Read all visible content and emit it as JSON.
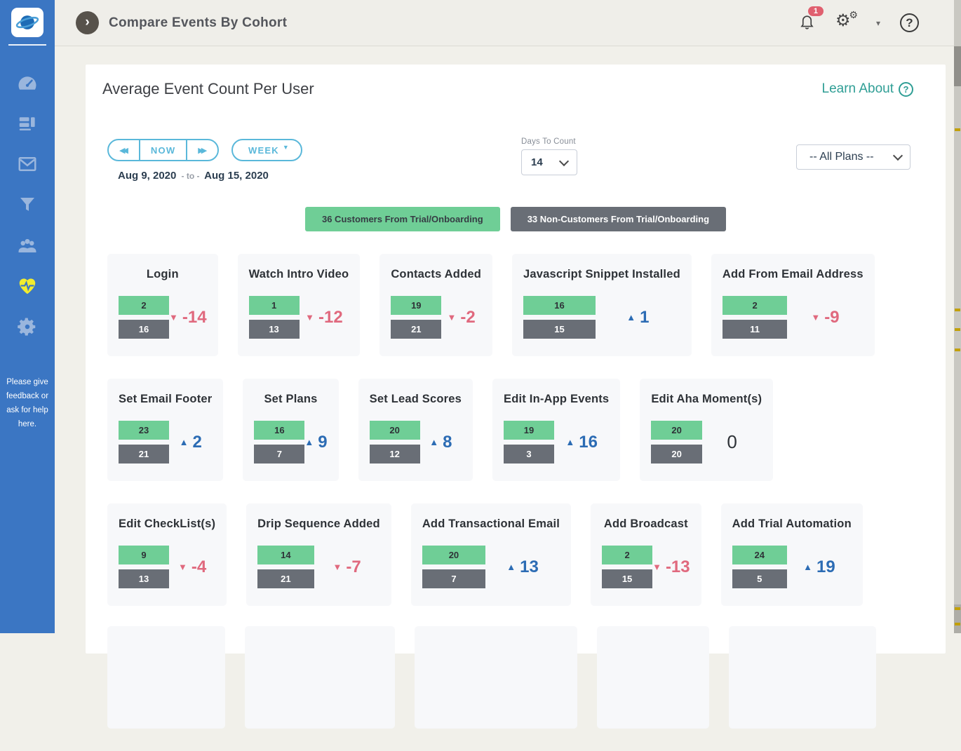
{
  "header": {
    "title": "Compare Events By Cohort",
    "collapse_chevron": "›",
    "notification_badge": "1",
    "gear_glyph": "⚙",
    "dropdown_caret": "▾",
    "help_glyph": "?"
  },
  "sidebar": {
    "items": [
      {
        "label": "dashboard"
      },
      {
        "label": "lists"
      },
      {
        "label": "email"
      },
      {
        "label": "filters"
      },
      {
        "label": "people"
      },
      {
        "label": "customer-health",
        "active": true
      },
      {
        "label": "settings"
      }
    ],
    "footer_note": "Please give feedback or ask for help here."
  },
  "panel": {
    "title": "Average Event Count Per User",
    "learn_label": "Learn About",
    "learn_q": "?",
    "time_nav": {
      "rewind_icon": "◀◀",
      "now_label": "NOW",
      "forward_icon": "▶▶",
      "period_label": "WEEK",
      "period_caret": "▼"
    },
    "date_range": {
      "start": "Aug 9, 2020",
      "separator": "- to -",
      "end": "Aug 15, 2020"
    },
    "days_to_count": {
      "label": "Days To Count",
      "value": "14"
    },
    "plan_filter": {
      "value": "-- All Plans --"
    },
    "cohorts": [
      {
        "label": "36 Customers From Trial/Onboarding",
        "color": "#6fce96"
      },
      {
        "label": "33 Non-Customers From Trial/Onboarding",
        "color": "#696e76"
      }
    ]
  },
  "icons": {
    "arrow_up": "▲",
    "arrow_down": "▼"
  },
  "colors": {
    "sidebar_blue": "#3b76c3",
    "active_yellow": "#f2ec2e",
    "header_bg": "#efeee9",
    "teal_link": "#2f9e95",
    "control_blue": "#5ab8da",
    "navy_text": "#2c3e50",
    "customers_green": "#6fce96",
    "non_customers_gray": "#696e76",
    "delta_down_red": "#e0697e",
    "delta_up_blue": "#2c6cb4",
    "badge_red": "#e0606f"
  },
  "chart_data": {
    "type": "bar",
    "title": "Average Event Count Per User",
    "period": {
      "start": "Aug 9, 2020",
      "end": "Aug 15, 2020",
      "granularity": "WEEK",
      "days_to_count": 14
    },
    "series": [
      {
        "name": "36 Customers From Trial/Onboarding",
        "color": "#6fce96"
      },
      {
        "name": "33 Non-Customers From Trial/Onboarding",
        "color": "#696e76"
      }
    ],
    "layout": {
      "rows": [
        5,
        5,
        5
      ],
      "partial_row_widths": [
        168,
        214,
        232,
        160,
        210
      ]
    },
    "cards": [
      {
        "title": "Login",
        "customers": 2,
        "non_customers": 16,
        "delta": -14
      },
      {
        "title": "Watch Intro Video",
        "customers": 1,
        "non_customers": 13,
        "delta": -12
      },
      {
        "title": "Contacts Added",
        "customers": 19,
        "non_customers": 21,
        "delta": -2
      },
      {
        "title": "Javascript Snippet Installed",
        "customers": 16,
        "non_customers": 15,
        "delta": 1
      },
      {
        "title": "Add From Email Address",
        "customers": 2,
        "non_customers": 11,
        "delta": -9
      },
      {
        "title": "Set Email Footer",
        "customers": 23,
        "non_customers": 21,
        "delta": 2
      },
      {
        "title": "Set Plans",
        "customers": 16,
        "non_customers": 7,
        "delta": 9
      },
      {
        "title": "Set Lead Scores",
        "customers": 20,
        "non_customers": 12,
        "delta": 8
      },
      {
        "title": "Edit In-App Events",
        "customers": 19,
        "non_customers": 3,
        "delta": 16
      },
      {
        "title": "Edit Aha Moment(s)",
        "customers": 20,
        "non_customers": 20,
        "delta": 0
      },
      {
        "title": "Edit CheckList(s)",
        "customers": 9,
        "non_customers": 13,
        "delta": -4
      },
      {
        "title": "Drip Sequence Added",
        "customers": 14,
        "non_customers": 21,
        "delta": -7
      },
      {
        "title": "Add Transactional Email",
        "customers": 20,
        "non_customers": 7,
        "delta": 13
      },
      {
        "title": "Add Broadcast",
        "customers": 2,
        "non_customers": 15,
        "delta": -13
      },
      {
        "title": "Add Trial Automation",
        "customers": 24,
        "non_customers": 5,
        "delta": 19
      }
    ]
  }
}
